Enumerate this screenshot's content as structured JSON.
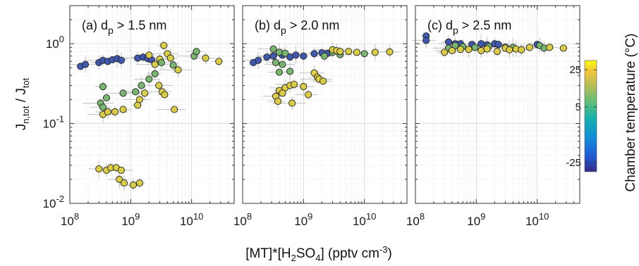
{
  "chart_data": {
    "type": "scatter",
    "xlabel": {
      "main": "[MT]*[H",
      "sub1": "2",
      "mid": "SO",
      "sub2": "4",
      "tail": "] (pptv cm",
      "sup": "-3",
      "end": ")"
    },
    "ylabel": {
      "main": "J",
      "sub_num": "n,tot",
      "slash": " / J",
      "sub_den": "tot"
    },
    "x_scale": "log",
    "y_scale": "log",
    "xlim": [
      100000000,
      50000000000
    ],
    "ylim": [
      0.01,
      3
    ],
    "x_ticks": [
      {
        "value": 100000000,
        "base": "10",
        "exp": "8"
      },
      {
        "value": 1000000000,
        "base": "10",
        "exp": "9"
      },
      {
        "value": 10000000000,
        "base": "10",
        "exp": "10"
      }
    ],
    "y_ticks": [
      {
        "value": 0.01,
        "base": "10",
        "exp": "-2"
      },
      {
        "value": 0.1,
        "base": "10",
        "exp": "-1"
      },
      {
        "value": 1,
        "base": "10",
        "exp": "0"
      }
    ],
    "grid": true,
    "colorbar": {
      "label": "Chamber temperature (°C)",
      "ticks": [
        "25",
        "5",
        "-25"
      ],
      "tick_values": [
        25,
        5,
        -25
      ],
      "range": [
        -30,
        30
      ],
      "colors": {
        "cold": "#3a46b8",
        "mid": "#5fb07a",
        "warm": "#f2d13a",
        "edge": "#222222",
        "errorbar": "#c8c8c8"
      }
    },
    "panels": [
      {
        "label_prefix": "(a)  d",
        "label_sub": "p",
        "label_suffix": " > 1.5 nm",
        "points": [
          {
            "x": 150000000.0,
            "y": 0.52,
            "t": -25
          },
          {
            "x": 180000000.0,
            "y": 0.55,
            "t": -25
          },
          {
            "x": 300000000.0,
            "y": 0.58,
            "t": -25
          },
          {
            "x": 350000000.0,
            "y": 0.62,
            "t": -25
          },
          {
            "x": 420000000.0,
            "y": 0.6,
            "t": -25
          },
          {
            "x": 500000000.0,
            "y": 0.63,
            "t": -25
          },
          {
            "x": 600000000.0,
            "y": 0.65,
            "t": -25
          },
          {
            "x": 700000000.0,
            "y": 0.62,
            "t": -25
          },
          {
            "x": 1300000000.0,
            "y": 0.66,
            "t": -25
          },
          {
            "x": 1600000000.0,
            "y": 0.68,
            "t": -25
          },
          {
            "x": 1900000000.0,
            "y": 0.65,
            "t": -25
          },
          {
            "x": 2200000000.0,
            "y": 0.63,
            "t": -25
          },
          {
            "x": 2000000000.0,
            "y": 0.72,
            "t": 25
          },
          {
            "x": 2500000000.0,
            "y": 0.55,
            "t": 25
          },
          {
            "x": 3000000000.0,
            "y": 0.64,
            "t": 25
          },
          {
            "x": 3500000000.0,
            "y": 0.95,
            "t": 25
          },
          {
            "x": 4000000000.0,
            "y": 0.75,
            "t": 25
          },
          {
            "x": 4500000000.0,
            "y": 0.66,
            "t": 25
          },
          {
            "x": 6000000000.0,
            "y": 0.47,
            "t": 25
          },
          {
            "x": 17000000000.0,
            "y": 0.66,
            "t": 25
          },
          {
            "x": 28000000000.0,
            "y": 0.6,
            "t": 25
          },
          {
            "x": 11000000000.0,
            "y": 0.7,
            "t": 5
          },
          {
            "x": 12000000000.0,
            "y": 0.8,
            "t": 5
          },
          {
            "x": 5000000000.0,
            "y": 0.54,
            "t": 5
          },
          {
            "x": 3200000000.0,
            "y": 0.58,
            "t": 5
          },
          {
            "x": 350000000.0,
            "y": 0.29,
            "t": 5
          },
          {
            "x": 750000000.0,
            "y": 0.24,
            "t": 5
          },
          {
            "x": 1200000000.0,
            "y": 0.25,
            "t": 5
          },
          {
            "x": 1500000000.0,
            "y": 0.3,
            "t": 5
          },
          {
            "x": 2000000000.0,
            "y": 0.36,
            "t": 5
          },
          {
            "x": 2500000000.0,
            "y": 0.42,
            "t": 5
          },
          {
            "x": 320000000.0,
            "y": 0.18,
            "t": 5
          },
          {
            "x": 350000000.0,
            "y": 0.16,
            "t": 5
          },
          {
            "x": 400000000.0,
            "y": 0.21,
            "t": 5
          },
          {
            "x": 350000000.0,
            "y": 0.13,
            "t": 25
          },
          {
            "x": 420000000.0,
            "y": 0.14,
            "t": 25
          },
          {
            "x": 550000000.0,
            "y": 0.14,
            "t": 25
          },
          {
            "x": 750000000.0,
            "y": 0.15,
            "t": 25
          },
          {
            "x": 1300000000.0,
            "y": 0.17,
            "t": 25
          },
          {
            "x": 1400000000.0,
            "y": 0.2,
            "t": 25
          },
          {
            "x": 1700000000.0,
            "y": 0.24,
            "t": 25
          },
          {
            "x": 2900000000.0,
            "y": 0.3,
            "t": 25
          },
          {
            "x": 3300000000.0,
            "y": 0.25,
            "t": 25
          },
          {
            "x": 3600000000.0,
            "y": 0.23,
            "t": 25
          },
          {
            "x": 5200000000.0,
            "y": 0.15,
            "t": 25
          },
          {
            "x": 300000000.0,
            "y": 0.027,
            "t": 25
          },
          {
            "x": 400000000.0,
            "y": 0.026,
            "t": 25
          },
          {
            "x": 470000000.0,
            "y": 0.028,
            "t": 25
          },
          {
            "x": 580000000.0,
            "y": 0.028,
            "t": 25
          },
          {
            "x": 700000000.0,
            "y": 0.026,
            "t": 25
          },
          {
            "x": 650000000.0,
            "y": 0.02,
            "t": 25
          },
          {
            "x": 780000000.0,
            "y": 0.018,
            "t": 25
          },
          {
            "x": 1100000000.0,
            "y": 0.017,
            "t": 25
          },
          {
            "x": 1400000000.0,
            "y": 0.018,
            "t": 25
          }
        ]
      },
      {
        "label_prefix": "(b)  d",
        "label_sub": "p",
        "label_suffix": " > 2.0 nm",
        "points": [
          {
            "x": 150000000.0,
            "y": 0.58,
            "t": -25
          },
          {
            "x": 180000000.0,
            "y": 0.62,
            "t": -25
          },
          {
            "x": 250000000.0,
            "y": 0.68,
            "t": -25
          },
          {
            "x": 320000000.0,
            "y": 0.7,
            "t": -25
          },
          {
            "x": 450000000.0,
            "y": 0.72,
            "t": -25
          },
          {
            "x": 600000000.0,
            "y": 0.68,
            "t": -25
          },
          {
            "x": 750000000.0,
            "y": 0.72,
            "t": -25
          },
          {
            "x": 1000000000.0,
            "y": 0.7,
            "t": -25
          },
          {
            "x": 1500000000.0,
            "y": 0.75,
            "t": -25
          },
          {
            "x": 2000000000.0,
            "y": 0.77,
            "t": -25
          },
          {
            "x": 2500000000.0,
            "y": 0.76,
            "t": -25
          },
          {
            "x": 320000000.0,
            "y": 0.86,
            "t": 5
          },
          {
            "x": 400000000.0,
            "y": 0.78,
            "t": 5
          },
          {
            "x": 500000000.0,
            "y": 0.76,
            "t": 5
          },
          {
            "x": 2200000000.0,
            "y": 0.7,
            "t": 5
          },
          {
            "x": 3000000000.0,
            "y": 0.78,
            "t": 5
          },
          {
            "x": 4000000000.0,
            "y": 0.73,
            "t": 5
          },
          {
            "x": 10000000000.0,
            "y": 0.75,
            "t": 5
          },
          {
            "x": 3000000000.0,
            "y": 0.84,
            "t": 25
          },
          {
            "x": 3500000000.0,
            "y": 0.82,
            "t": 25
          },
          {
            "x": 4000000000.0,
            "y": 0.8,
            "t": 25
          },
          {
            "x": 5500000000.0,
            "y": 0.8,
            "t": 25
          },
          {
            "x": 7500000000.0,
            "y": 0.78,
            "t": 25
          },
          {
            "x": 15000000000.0,
            "y": 0.78,
            "t": 25
          },
          {
            "x": 26000000000.0,
            "y": 0.79,
            "t": 25
          },
          {
            "x": 350000000.0,
            "y": 0.58,
            "t": 5
          },
          {
            "x": 450000000.0,
            "y": 0.55,
            "t": 5
          },
          {
            "x": 400000000.0,
            "y": 0.44,
            "t": 5
          },
          {
            "x": 600000000.0,
            "y": 0.45,
            "t": 5
          },
          {
            "x": 1500000000.0,
            "y": 0.43,
            "t": 25
          },
          {
            "x": 1700000000.0,
            "y": 0.38,
            "t": 25
          },
          {
            "x": 1800000000.0,
            "y": 0.36,
            "t": 25
          },
          {
            "x": 2100000000.0,
            "y": 0.34,
            "t": 25
          },
          {
            "x": 400000000.0,
            "y": 0.26,
            "t": 25
          },
          {
            "x": 500000000.0,
            "y": 0.28,
            "t": 25
          },
          {
            "x": 600000000.0,
            "y": 0.3,
            "t": 25
          },
          {
            "x": 700000000.0,
            "y": 0.31,
            "t": 25
          },
          {
            "x": 350000000.0,
            "y": 0.22,
            "t": 25
          },
          {
            "x": 450000000.0,
            "y": 0.24,
            "t": 25
          },
          {
            "x": 1000000000.0,
            "y": 0.29,
            "t": 25
          },
          {
            "x": 380000000.0,
            "y": 0.19,
            "t": 25
          },
          {
            "x": 650000000.0,
            "y": 0.18,
            "t": 25
          },
          {
            "x": 1200000000.0,
            "y": 0.23,
            "t": 25
          }
        ]
      },
      {
        "label_prefix": "(c)  d",
        "label_sub": "p",
        "label_suffix": " > 2.5 nm",
        "points": [
          {
            "x": 150000000.0,
            "y": 1.25,
            "t": -25
          },
          {
            "x": 150000000.0,
            "y": 1.1,
            "t": -25
          },
          {
            "x": 350000000.0,
            "y": 1.05,
            "t": -25
          },
          {
            "x": 450000000.0,
            "y": 1.0,
            "t": -25
          },
          {
            "x": 550000000.0,
            "y": 1.0,
            "t": -25
          },
          {
            "x": 850000000.0,
            "y": 0.98,
            "t": -25
          },
          {
            "x": 1200000000.0,
            "y": 1.0,
            "t": -25
          },
          {
            "x": 1500000000.0,
            "y": 0.97,
            "t": -25
          },
          {
            "x": 2000000000.0,
            "y": 1.0,
            "t": -25
          },
          {
            "x": 2300000000.0,
            "y": 0.98,
            "t": -25
          },
          {
            "x": 10000000000.0,
            "y": 0.98,
            "t": -25
          },
          {
            "x": 350000000.0,
            "y": 0.88,
            "t": 5
          },
          {
            "x": 450000000.0,
            "y": 0.95,
            "t": 5
          },
          {
            "x": 600000000.0,
            "y": 0.92,
            "t": 5
          },
          {
            "x": 950000000.0,
            "y": 0.9,
            "t": 5
          },
          {
            "x": 1600000000.0,
            "y": 0.92,
            "t": 5
          },
          {
            "x": 3000000000.0,
            "y": 0.91,
            "t": 5
          },
          {
            "x": 4000000000.0,
            "y": 0.9,
            "t": 5
          },
          {
            "x": 11000000000.0,
            "y": 0.95,
            "t": 5
          },
          {
            "x": 13000000000.0,
            "y": 0.88,
            "t": 5
          },
          {
            "x": 300000000.0,
            "y": 0.78,
            "t": 25
          },
          {
            "x": 400000000.0,
            "y": 0.82,
            "t": 25
          },
          {
            "x": 550000000.0,
            "y": 0.85,
            "t": 25
          },
          {
            "x": 750000000.0,
            "y": 0.85,
            "t": 25
          },
          {
            "x": 1200000000.0,
            "y": 0.82,
            "t": 25
          },
          {
            "x": 1500000000.0,
            "y": 0.86,
            "t": 25
          },
          {
            "x": 2200000000.0,
            "y": 0.8,
            "t": 25
          },
          {
            "x": 3000000000.0,
            "y": 0.88,
            "t": 25
          },
          {
            "x": 3500000000.0,
            "y": 0.84,
            "t": 25
          },
          {
            "x": 4500000000.0,
            "y": 0.86,
            "t": 25
          },
          {
            "x": 5500000000.0,
            "y": 0.84,
            "t": 25
          },
          {
            "x": 7500000000.0,
            "y": 0.9,
            "t": 25
          },
          {
            "x": 16000000000.0,
            "y": 0.9,
            "t": 25
          },
          {
            "x": 27000000000.0,
            "y": 0.88,
            "t": 25
          }
        ]
      }
    ]
  }
}
